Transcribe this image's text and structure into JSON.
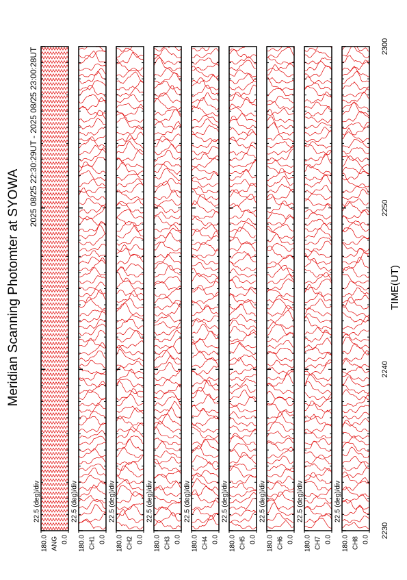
{
  "chart_data": {
    "type": "msp",
    "title": "Meridian Scanning Photomter at SYOWA",
    "subtitle": "2025 08/25 22:30:29UT - 2025 08/25 23:00:28UT",
    "xlabel": "TIME(UT)",
    "xlim": [
      1350,
      1380
    ],
    "xticks": [
      {
        "value": 1350,
        "label": "2230"
      },
      {
        "value": 1360,
        "label": "2240"
      },
      {
        "value": 1370,
        "label": "2250"
      },
      {
        "value": 1380,
        "label": "2300"
      }
    ],
    "ylim": [
      0,
      180
    ],
    "yticks": [
      {
        "value": 180,
        "label": "180.0"
      },
      {
        "value": 0,
        "label": "0.0"
      }
    ],
    "scale_label": "22.5 (deg)/div",
    "color": "#e00000",
    "panels": [
      "ANG",
      "CH1",
      "CH2",
      "CH3",
      "CH4",
      "CH5",
      "CH6",
      "CH7",
      "CH8"
    ]
  }
}
